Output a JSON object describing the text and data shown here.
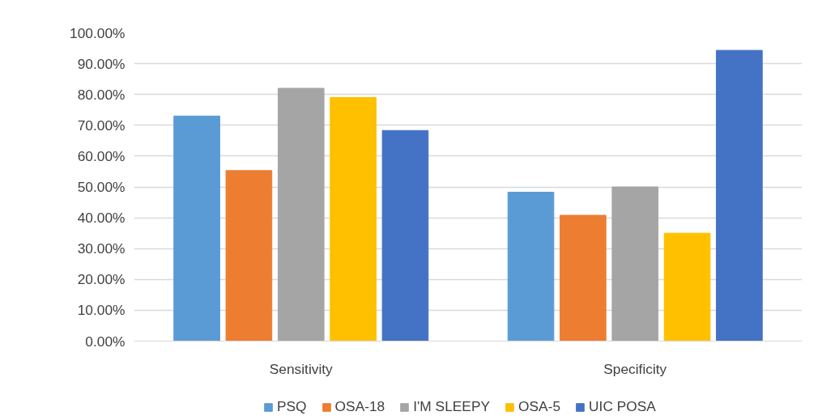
{
  "chart_data": {
    "type": "bar",
    "categories": [
      "Sensitivity",
      "Specificity"
    ],
    "series": [
      {
        "name": "PSQ",
        "color": "#5b9bd5",
        "values": [
          73,
          48.3
        ]
      },
      {
        "name": "OSA-18",
        "color": "#ed7d31",
        "values": [
          55.3,
          40.8
        ]
      },
      {
        "name": "I'M SLEEPY",
        "color": "#a5a5a5",
        "values": [
          82,
          50
        ]
      },
      {
        "name": "OSA-5",
        "color": "#ffc000",
        "values": [
          79,
          35
        ]
      },
      {
        "name": "UIC POSA",
        "color": "#4472c4",
        "values": [
          68.3,
          94.3
        ]
      }
    ],
    "ylim": [
      0,
      100
    ],
    "yticks": [
      {
        "value": 0,
        "label": "0.00%"
      },
      {
        "value": 10,
        "label": "10.00%"
      },
      {
        "value": 20,
        "label": "20.00%"
      },
      {
        "value": 30,
        "label": "30.00%"
      },
      {
        "value": 40,
        "label": "40.00%"
      },
      {
        "value": 50,
        "label": "50.00%"
      },
      {
        "value": 60,
        "label": "60.00%"
      },
      {
        "value": 70,
        "label": "70.00%"
      },
      {
        "value": 80,
        "label": "80.00%"
      },
      {
        "value": 90,
        "label": "90.00%"
      },
      {
        "value": 100,
        "label": "100.00%"
      }
    ],
    "grid": "y",
    "legend": "bottom"
  }
}
